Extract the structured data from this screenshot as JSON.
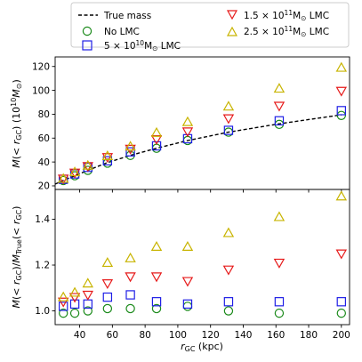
{
  "chart_data": [
    {
      "panel": "top",
      "type": "scatter",
      "xlabel": "r_GC (kpc)",
      "ylabel": "M(< r_GC) (10^10 M⊙)",
      "xlim": [
        25,
        205
      ],
      "ylim": [
        17,
        128
      ],
      "xticks": [
        40,
        60,
        80,
        100,
        120,
        140,
        160,
        180,
        200
      ],
      "yticks": [
        20,
        40,
        60,
        80,
        100,
        120
      ],
      "grid": false,
      "x": [
        30,
        37,
        45,
        57,
        71,
        87,
        106,
        131,
        162,
        200
      ],
      "line": {
        "name": "True mass",
        "style": "dashed",
        "color": "#000000",
        "x": [
          25,
          30,
          37,
          45,
          57,
          71,
          87,
          106,
          131,
          162,
          200
        ],
        "y": [
          21.5,
          24.5,
          28.5,
          33.0,
          39.5,
          45.5,
          51.5,
          58.0,
          65.0,
          72.0,
          79.5
        ]
      },
      "series": [
        {
          "name": "No LMC",
          "marker": "circle",
          "color": "#1a8a1a",
          "y": [
            24.5,
            28.5,
            33.0,
            39.0,
            45.5,
            51.5,
            58.0,
            65.0,
            71.5,
            79.0
          ]
        },
        {
          "name": "5×10^10 M⊙ LMC",
          "marker": "square",
          "color": "#1f1fe6",
          "y": [
            25.5,
            30.0,
            35.5,
            41.0,
            48.5,
            53.5,
            59.5,
            66.5,
            74.5,
            83.0
          ]
        },
        {
          "name": "1.5×10^11 M⊙ LMC",
          "marker": "triangle-down",
          "color": "#e61a1a",
          "y": [
            26.0,
            31.0,
            36.5,
            44.0,
            51.0,
            59.0,
            65.5,
            76.5,
            87.0,
            99.5
          ]
        },
        {
          "name": "2.5×10^11 M⊙ LMC",
          "marker": "triangle-up",
          "color": "#c8b400",
          "y": [
            26.0,
            31.5,
            37.0,
            45.0,
            53.0,
            64.5,
            73.5,
            86.5,
            101.5,
            119.0
          ]
        }
      ]
    },
    {
      "panel": "bottom",
      "type": "scatter",
      "xlabel": "r_GC (kpc)",
      "ylabel": "M(< r_GC)/M_True(< r_GC)",
      "xlim": [
        25,
        205
      ],
      "ylim": [
        0.94,
        1.53
      ],
      "xticks": [
        40,
        60,
        80,
        100,
        120,
        140,
        160,
        180,
        200
      ],
      "yticks": [
        1.0,
        1.2,
        1.4
      ],
      "grid": false,
      "x": [
        30,
        37,
        45,
        57,
        71,
        87,
        106,
        131,
        162,
        200
      ],
      "series": [
        {
          "name": "No LMC",
          "marker": "circle",
          "color": "#1a8a1a",
          "y": [
            0.99,
            0.99,
            1.0,
            1.01,
            1.01,
            1.01,
            1.02,
            1.0,
            0.99,
            0.99
          ]
        },
        {
          "name": "5×10^10 M⊙ LMC",
          "marker": "square",
          "color": "#1f1fe6",
          "y": [
            1.02,
            1.03,
            1.03,
            1.06,
            1.07,
            1.04,
            1.03,
            1.04,
            1.04,
            1.04
          ]
        },
        {
          "name": "1.5×10^11 M⊙ LMC",
          "marker": "triangle-down",
          "color": "#e61a1a",
          "y": [
            1.04,
            1.06,
            1.07,
            1.12,
            1.15,
            1.15,
            1.13,
            1.18,
            1.21,
            1.25
          ]
        },
        {
          "name": "2.5×10^11 M⊙ LMC",
          "marker": "triangle-up",
          "color": "#c8b400",
          "y": [
            1.06,
            1.08,
            1.12,
            1.21,
            1.23,
            1.28,
            1.28,
            1.34,
            1.41,
            1.5
          ]
        }
      ]
    }
  ],
  "legend": {
    "placement": "top",
    "entries": [
      {
        "label": "True mass",
        "marker": "dashed-line",
        "color": "#000000"
      },
      {
        "label": "No LMC",
        "marker": "circle",
        "color": "#1a8a1a"
      },
      {
        "label": "5×10^10 M⊙ LMC",
        "marker": "square",
        "color": "#1f1fe6"
      },
      {
        "label": "1.5×10^11 M⊙ LMC",
        "marker": "triangle-down",
        "color": "#e61a1a"
      },
      {
        "label": "2.5×10^11 M⊙ LMC",
        "marker": "triangle-up",
        "color": "#c8b400"
      }
    ]
  }
}
